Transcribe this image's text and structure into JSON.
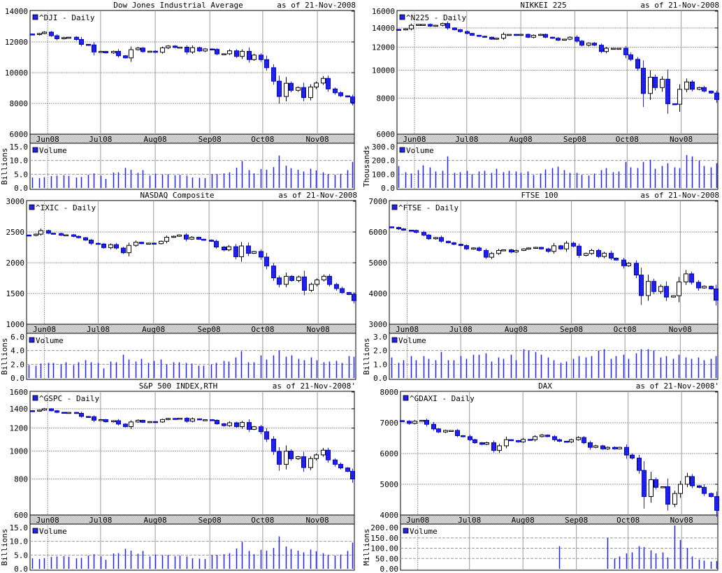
{
  "colors": {
    "down": "#1f1fff",
    "down_edge": "#0000c8",
    "up": "#ffffff",
    "up_edge": "#000000",
    "volume": "#1f1fff",
    "grid": "#999999"
  },
  "dates": [
    "2008-05-23",
    "2008-05-27",
    "2008-05-30",
    "2008-06-03",
    "2008-06-06",
    "2008-06-10",
    "2008-06-13",
    "2008-06-17",
    "2008-06-20",
    "2008-06-24",
    "2008-06-27",
    "2008-07-01",
    "2008-07-04",
    "2008-07-08",
    "2008-07-11",
    "2008-07-15",
    "2008-07-18",
    "2008-07-22",
    "2008-07-25",
    "2008-07-29",
    "2008-08-01",
    "2008-08-05",
    "2008-08-08",
    "2008-08-12",
    "2008-08-15",
    "2008-08-19",
    "2008-08-22",
    "2008-08-26",
    "2008-08-29",
    "2008-09-02",
    "2008-09-05",
    "2008-09-09",
    "2008-09-12",
    "2008-09-16",
    "2008-09-19",
    "2008-09-23",
    "2008-09-26",
    "2008-09-30",
    "2008-10-03",
    "2008-10-07",
    "2008-10-10",
    "2008-10-14",
    "2008-10-17",
    "2008-10-21",
    "2008-10-24",
    "2008-10-28",
    "2008-10-31",
    "2008-11-04",
    "2008-11-07",
    "2008-11-11",
    "2008-11-14",
    "2008-11-18",
    "2008-11-21"
  ],
  "xlim": [
    "2008-05-22",
    "2008-11-22"
  ],
  "x_ticks": [
    {
      "label": "Jun08",
      "date": "2008-06-01"
    },
    {
      "label": "Jul08",
      "date": "2008-07-01"
    },
    {
      "label": "Aug08",
      "date": "2008-08-01"
    },
    {
      "label": "Sep08",
      "date": "2008-09-01"
    },
    {
      "label": "Oct08",
      "date": "2008-10-01"
    },
    {
      "label": "Nov08",
      "date": "2008-11-01"
    }
  ],
  "chart_data": [
    {
      "type": "candlestick",
      "title": "Dow Jones Industrial Average",
      "as_of": "as of 21-Nov-2008",
      "legend": "^DJI - Daily",
      "y_scale": "linear",
      "ylim": [
        6000,
        14000
      ],
      "yticks": [
        6000,
        8000,
        10000,
        12000,
        14000
      ],
      "close": [
        12479,
        12548,
        12638,
        12403,
        12209,
        12280,
        12307,
        12160,
        11842,
        11807,
        11346,
        11382,
        11288,
        11384,
        11100,
        10963,
        11496,
        11602,
        11370,
        11397,
        11326,
        11616,
        11734,
        11642,
        11659,
        11348,
        11628,
        11413,
        11543,
        11516,
        11220,
        11231,
        11421,
        11059,
        11388,
        10854,
        11143,
        10851,
        10325,
        9447,
        8451,
        9311,
        8852,
        9034,
        8378,
        9065,
        9325,
        9625,
        8943,
        8694,
        8497,
        8424,
        8046
      ],
      "volume": {
        "legend": "Volume",
        "ylabel": "Billions",
        "ylim": [
          0,
          15
        ],
        "ticks": [
          "0.0",
          "5.0",
          "10.0",
          "15.0"
        ],
        "values": [
          3.8,
          3.6,
          3.9,
          4.3,
          4.5,
          4.6,
          4.4,
          3.8,
          4.0,
          4.8,
          5.3,
          4.5,
          3.3,
          5.6,
          5.7,
          7.3,
          6.6,
          5.5,
          6.5,
          4.5,
          5.2,
          4.9,
          5.0,
          4.6,
          4.8,
          4.5,
          3.8,
          3.7,
          3.6,
          5.0,
          5.1,
          5.3,
          5.7,
          7.4,
          9.8,
          6.5,
          5.3,
          6.9,
          6.6,
          7.6,
          11.8,
          8.1,
          7.2,
          6.6,
          6.0,
          7.0,
          6.4,
          5.7,
          5.1,
          4.8,
          5.2,
          6.5,
          9.5
        ]
      }
    },
    {
      "type": "candlestick",
      "title": "NIKKEI 225",
      "as_of": "as of 21-Nov-2008",
      "legend": "^N225 - Daily",
      "y_scale": "log",
      "ylim": [
        6000,
        16000
      ],
      "yticks": [
        6000,
        8000,
        10000,
        12000,
        14000,
        16000
      ],
      "close": [
        13800,
        13900,
        14300,
        14400,
        14400,
        14200,
        14300,
        14500,
        14000,
        13800,
        13600,
        13400,
        13200,
        13100,
        13000,
        12800,
        12900,
        13300,
        13300,
        13200,
        13300,
        13000,
        13200,
        13300,
        13000,
        12900,
        12700,
        12800,
        13000,
        12600,
        12200,
        12400,
        12200,
        11600,
        11900,
        11900,
        11900,
        11300,
        10900,
        10150,
        8300,
        9450,
        8700,
        9300,
        7650,
        7620,
        8580,
        9100,
        8580,
        8700,
        8460,
        8330,
        7910
      ],
      "volume": {
        "legend": "Volume",
        "ylabel": "Thousands",
        "ylim": [
          0,
          300
        ],
        "ticks": [
          "0.0",
          "100.0",
          "200.0",
          "300.0"
        ],
        "values": [
          160,
          115,
          105,
          130,
          165,
          150,
          120,
          125,
          230,
          110,
          115,
          125,
          100,
          120,
          125,
          110,
          140,
          115,
          125,
          120,
          110,
          120,
          95,
          105,
          135,
          145,
          155,
          130,
          110,
          110,
          95,
          90,
          105,
          130,
          145,
          115,
          120,
          190,
          150,
          145,
          190,
          205,
          140,
          160,
          180,
          150,
          145,
          240,
          230,
          200,
          160,
          150,
          180
        ]
      }
    },
    {
      "type": "candlestick",
      "title": "NASDAQ Composite",
      "as_of": "as of 21-Nov-2008",
      "legend": "^IXIC - Daily",
      "y_scale": "linear",
      "ylim": [
        1000,
        3000
      ],
      "yticks": [
        1000,
        1500,
        2000,
        2500,
        3000
      ],
      "close": [
        2444,
        2465,
        2523,
        2480,
        2474,
        2448,
        2454,
        2429,
        2407,
        2368,
        2316,
        2304,
        2246,
        2294,
        2239,
        2163,
        2282,
        2334,
        2310,
        2319,
        2310,
        2349,
        2414,
        2430,
        2452,
        2384,
        2414,
        2382,
        2368,
        2349,
        2255,
        2209,
        2261,
        2098,
        2273,
        2153,
        2183,
        2092,
        1947,
        1754,
        1649,
        1779,
        1711,
        1770,
        1552,
        1649,
        1720,
        1780,
        1647,
        1580,
        1516,
        1483,
        1384
      ],
      "volume": {
        "legend": "Volume",
        "ylabel": "Billions",
        "ylim": [
          0,
          6
        ],
        "ticks": [
          "0.0",
          "2.0",
          "4.0",
          "6.0"
        ],
        "values": [
          1.9,
          1.8,
          2.1,
          2.2,
          2.2,
          2.0,
          2.3,
          1.9,
          2.3,
          2.6,
          2.3,
          2.2,
          1.4,
          2.4,
          2.3,
          3.4,
          2.7,
          2.4,
          2.8,
          2.2,
          2.5,
          2.7,
          2.0,
          2.3,
          2.3,
          2.2,
          2.1,
          1.8,
          1.8,
          2.0,
          2.2,
          2.5,
          2.4,
          3.0,
          3.9,
          2.3,
          2.3,
          3.3,
          2.7,
          3.3,
          4.0,
          3.1,
          3.3,
          2.8,
          2.6,
          3.0,
          2.6,
          2.3,
          2.4,
          2.5,
          2.2,
          3.2,
          3.1
        ]
      }
    },
    {
      "type": "candlestick",
      "title": "FTSE 100",
      "as_of": "as of 21-Nov-2008",
      "legend": "^FTSE - Daily",
      "y_scale": "linear",
      "ylim": [
        3000,
        7000
      ],
      "yticks": [
        3000,
        4000,
        5000,
        6000,
        7000
      ],
      "close": [
        6150,
        6100,
        6060,
        6050,
        5990,
        5900,
        5780,
        5820,
        5700,
        5650,
        5600,
        5560,
        5450,
        5480,
        5400,
        5180,
        5300,
        5400,
        5420,
        5350,
        5400,
        5450,
        5480,
        5500,
        5450,
        5370,
        5550,
        5450,
        5636,
        5540,
        5240,
        5300,
        5400,
        5204,
        5311,
        5150,
        5088,
        4902,
        4980,
        4600,
        3932,
        4394,
        4064,
        4230,
        3883,
        3926,
        4377,
        4639,
        4364,
        4180,
        4233,
        4150,
        3781
      ],
      "volume": {
        "legend": "Volume",
        "ylabel": "Billions",
        "ylim": [
          0,
          3
        ],
        "ticks": [
          "0.0",
          "1.0",
          "2.0",
          "3.0"
        ],
        "values": [
          1.5,
          1.1,
          1.3,
          1.6,
          1.3,
          1.6,
          1.4,
          1.3,
          1.9,
          1.3,
          1.3,
          1.6,
          1.4,
          1.7,
          1.7,
          1.8,
          1.2,
          1.5,
          1.4,
          1.7,
          1.3,
          2.1,
          2.0,
          1.9,
          1.7,
          1.5,
          1.3,
          1.1,
          1.2,
          1.4,
          1.6,
          1.5,
          1.6,
          2.0,
          2.1,
          1.4,
          1.6,
          1.7,
          1.4,
          1.8,
          2.1,
          2.1,
          2.0,
          1.5,
          1.6,
          1.4,
          1.7,
          1.5,
          1.4,
          1.5,
          1.3,
          1.4,
          1.6
        ]
      }
    },
    {
      "type": "candlestick",
      "title": "S&P 500 INDEX,RTH",
      "as_of": "as of 21-Nov-2008'",
      "legend": "^GSPC - Daily",
      "y_scale": "log",
      "ylim": [
        600,
        1600
      ],
      "yticks": [
        600,
        800,
        1000,
        1200,
        1400,
        1600
      ],
      "close": [
        1375,
        1385,
        1400,
        1378,
        1361,
        1358,
        1360,
        1350,
        1317,
        1314,
        1278,
        1284,
        1262,
        1273,
        1239,
        1214,
        1260,
        1277,
        1257,
        1264,
        1260,
        1285,
        1296,
        1290,
        1298,
        1267,
        1292,
        1282,
        1283,
        1277,
        1242,
        1224,
        1252,
        1214,
        1255,
        1188,
        1213,
        1166,
        1099,
        996,
        899,
        998,
        940,
        955,
        876,
        941,
        969,
        1006,
        931,
        899,
        873,
        850,
        800
      ],
      "volume": {
        "legend": "Volume",
        "ylabel": "Billions",
        "ylim": [
          0,
          15
        ],
        "ticks": [
          "0.0",
          "5.0",
          "10.0",
          "15.0"
        ],
        "values": [
          3.8,
          3.6,
          3.9,
          4.3,
          4.5,
          4.6,
          4.4,
          3.8,
          4.0,
          4.8,
          5.3,
          4.5,
          3.3,
          5.6,
          5.7,
          7.3,
          6.6,
          5.5,
          6.5,
          4.5,
          5.2,
          4.9,
          5.0,
          4.6,
          4.8,
          4.5,
          3.8,
          3.7,
          3.6,
          5.0,
          5.1,
          5.3,
          5.7,
          7.4,
          9.8,
          6.5,
          5.3,
          6.9,
          6.6,
          7.6,
          11.8,
          8.1,
          7.2,
          6.6,
          6.0,
          7.0,
          6.4,
          5.7,
          5.1,
          4.8,
          5.2,
          6.5,
          9.5
        ]
      }
    },
    {
      "type": "candlestick",
      "title": "DAX",
      "as_of": "as of 21-Nov-2008'",
      "legend": "^GDAXI - Daily",
      "y_scale": "linear",
      "ylim": [
        4000,
        8000
      ],
      "yticks": [
        4000,
        5000,
        6000,
        7000,
        8000
      ],
      "close": [
        7050,
        6980,
        7050,
        7080,
        6950,
        6800,
        6700,
        6750,
        6750,
        6580,
        6550,
        6450,
        6350,
        6300,
        6350,
        6100,
        6250,
        6450,
        6420,
        6380,
        6460,
        6450,
        6550,
        6600,
        6550,
        6450,
        6400,
        6380,
        6450,
        6520,
        6350,
        6200,
        6250,
        6150,
        6200,
        6150,
        6200,
        5950,
        5850,
        5450,
        4600,
        5150,
        4900,
        4920,
        4350,
        4700,
        5000,
        5250,
        4950,
        4900,
        4700,
        4600,
        4150
      ],
      "volume": {
        "legend": "Volume",
        "ylabel": "Millions",
        "ylim": [
          0,
          200
        ],
        "ticks": [
          "0.00",
          "50.00",
          "100.00",
          "150.00",
          "200.00"
        ],
        "values": [
          0,
          0,
          0,
          0,
          0,
          0,
          0,
          0,
          0,
          0,
          0,
          0,
          0,
          0,
          0,
          0,
          0,
          0,
          0,
          0,
          0,
          0,
          0,
          0,
          0,
          0,
          110,
          0,
          0,
          0,
          0,
          0,
          0,
          0,
          150,
          50,
          60,
          75,
          80,
          110,
          105,
          90,
          75,
          80,
          55,
          210,
          140,
          100,
          60,
          45,
          40,
          35,
          38
        ]
      }
    }
  ]
}
